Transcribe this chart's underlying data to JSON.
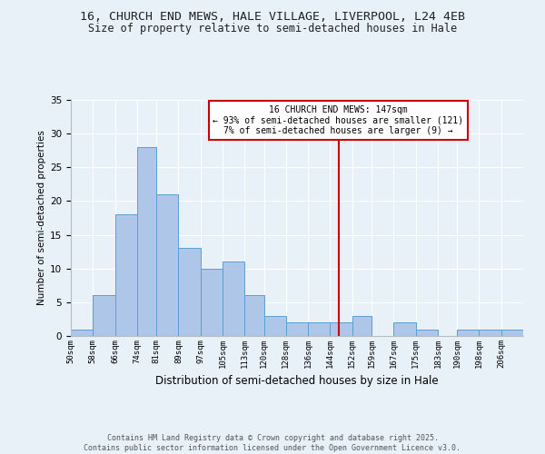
{
  "title_line1": "16, CHURCH END MEWS, HALE VILLAGE, LIVERPOOL, L24 4EB",
  "title_line2": "Size of property relative to semi-detached houses in Hale",
  "xlabel": "Distribution of semi-detached houses by size in Hale",
  "ylabel": "Number of semi-detached properties",
  "bar_edges": [
    50,
    58,
    66,
    74,
    81,
    89,
    97,
    105,
    113,
    120,
    128,
    136,
    144,
    152,
    159,
    167,
    175,
    183,
    190,
    198,
    206
  ],
  "bar_heights": [
    1,
    6,
    18,
    28,
    21,
    13,
    10,
    11,
    6,
    3,
    2,
    2,
    2,
    3,
    0,
    2,
    1,
    0,
    1,
    1,
    1
  ],
  "bar_color": "#aec6e8",
  "bar_edgecolor": "#5a9fd4",
  "vline_x": 147,
  "vline_color": "#cc0000",
  "annotation_text": "16 CHURCH END MEWS: 147sqm\n← 93% of semi-detached houses are smaller (121)\n7% of semi-detached houses are larger (9) →",
  "annotation_box_edgecolor": "#cc0000",
  "annotation_box_facecolor": "#ffffff",
  "ylim": [
    0,
    35
  ],
  "yticks": [
    0,
    5,
    10,
    15,
    20,
    25,
    30,
    35
  ],
  "background_color": "#e8f0f8",
  "plot_background": "#e8f0f8",
  "grid_color": "#ffffff",
  "footer_text": "Contains HM Land Registry data © Crown copyright and database right 2025.\nContains public sector information licensed under the Open Government Licence v3.0.",
  "tick_labels": [
    "50sqm",
    "58sqm",
    "66sqm",
    "74sqm",
    "81sqm",
    "89sqm",
    "97sqm",
    "105sqm",
    "113sqm",
    "120sqm",
    "128sqm",
    "136sqm",
    "144sqm",
    "152sqm",
    "159sqm",
    "167sqm",
    "175sqm",
    "183sqm",
    "190sqm",
    "198sqm",
    "206sqm"
  ]
}
